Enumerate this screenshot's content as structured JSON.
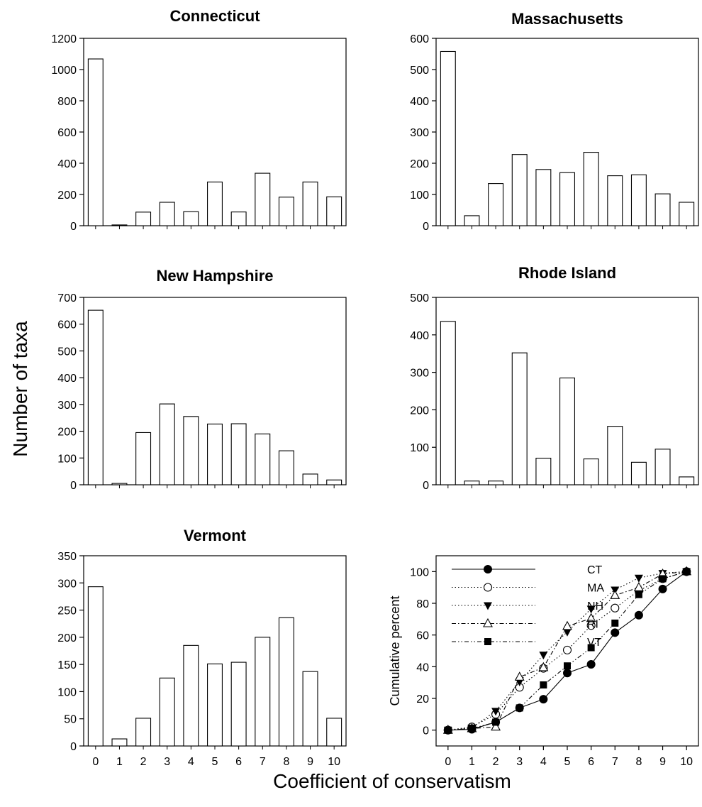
{
  "figure": {
    "ylabel": "Number of taxa",
    "xlabel": "Coefficient of conservatism"
  },
  "chart_data": [
    {
      "type": "bar",
      "title": "Connecticut",
      "categories": [
        0,
        1,
        2,
        3,
        4,
        5,
        6,
        7,
        8,
        9,
        10
      ],
      "values": [
        1068,
        5,
        87,
        150,
        90,
        280,
        88,
        336,
        183,
        280,
        185
      ],
      "ylim": [
        0,
        1200
      ],
      "yticks": [
        0,
        200,
        400,
        600,
        800,
        1000,
        1200
      ],
      "show_xticklabels": false
    },
    {
      "type": "bar",
      "title": "Massachusetts",
      "categories": [
        0,
        1,
        2,
        3,
        4,
        5,
        6,
        7,
        8,
        9,
        10
      ],
      "values": [
        558,
        32,
        135,
        228,
        180,
        170,
        235,
        160,
        163,
        102,
        75
      ],
      "ylim": [
        0,
        600
      ],
      "yticks": [
        0,
        100,
        200,
        300,
        400,
        500,
        600
      ],
      "show_xticklabels": false
    },
    {
      "type": "bar",
      "title": "New Hampshire",
      "categories": [
        0,
        1,
        2,
        3,
        4,
        5,
        6,
        7,
        8,
        9,
        10
      ],
      "values": [
        652,
        5,
        195,
        302,
        255,
        227,
        228,
        190,
        127,
        40,
        18
      ],
      "ylim": [
        0,
        700
      ],
      "yticks": [
        0,
        100,
        200,
        300,
        400,
        500,
        600,
        700
      ],
      "show_xticklabels": false
    },
    {
      "type": "bar",
      "title": "Rhode Island",
      "categories": [
        0,
        1,
        2,
        3,
        4,
        5,
        6,
        7,
        8,
        9,
        10
      ],
      "values": [
        436,
        10,
        10,
        352,
        71,
        285,
        69,
        156,
        60,
        95,
        21
      ],
      "ylim": [
        0,
        500
      ],
      "yticks": [
        0,
        100,
        200,
        300,
        400,
        500
      ],
      "show_xticklabels": false
    },
    {
      "type": "bar",
      "title": "Vermont",
      "categories": [
        0,
        1,
        2,
        3,
        4,
        5,
        6,
        7,
        8,
        9,
        10
      ],
      "values": [
        293,
        13,
        51,
        125,
        185,
        151,
        154,
        200,
        236,
        137,
        51
      ],
      "ylim": [
        0,
        350
      ],
      "yticks": [
        0,
        50,
        100,
        150,
        200,
        250,
        300,
        350
      ],
      "show_xticklabels": true
    },
    {
      "type": "line",
      "ylabel": "Cumulative percent",
      "x": [
        0,
        1,
        2,
        3,
        4,
        5,
        6,
        7,
        8,
        9,
        10
      ],
      "xlim": [
        -0.5,
        10.5
      ],
      "ylim": [
        -10,
        110
      ],
      "yticks": [
        0,
        20,
        40,
        60,
        80,
        100
      ],
      "legend_position": "top-left",
      "series": [
        {
          "name": "CT",
          "marker": "filled-circle",
          "style": "solid",
          "values": [
            0,
            0.5,
            5,
            14,
            19.5,
            36,
            41.5,
            61.5,
            72.5,
            89,
            100
          ]
        },
        {
          "name": "MA",
          "marker": "open-circle",
          "style": "dotted",
          "values": [
            0,
            2,
            10,
            27,
            39,
            50.5,
            66,
            77,
            88,
            95.5,
            100
          ]
        },
        {
          "name": "NH",
          "marker": "filled-triangle-down",
          "style": "dotted",
          "values": [
            0,
            1.5,
            12,
            30.5,
            47.5,
            62,
            76.5,
            88.5,
            96,
            99,
            100
          ]
        },
        {
          "name": "RI",
          "marker": "open-triangle-up",
          "style": "dash-dot",
          "values": [
            0,
            1,
            2,
            33.5,
            39.5,
            65.5,
            70.5,
            85,
            90,
            98.5,
            100
          ]
        },
        {
          "name": "VT",
          "marker": "filled-square",
          "style": "dash-dot-dot",
          "values": [
            0,
            1,
            5,
            14,
            28.5,
            40.5,
            52,
            67.5,
            85.5,
            95.5,
            100
          ]
        }
      ]
    }
  ]
}
